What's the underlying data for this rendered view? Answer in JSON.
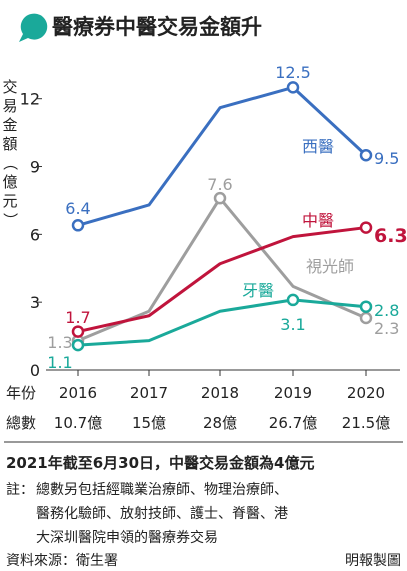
{
  "header": {
    "title": "醫療券中醫交易金額升"
  },
  "colors": {
    "accent": "#1aa99a",
    "西醫": "#3a6fc0",
    "中醫": "#c0143c",
    "視光師": "#9e9e9e",
    "牙醫": "#1aa99a",
    "text": "#222222"
  },
  "chart_data": {
    "type": "line",
    "ylabel": "交易金額（億元）",
    "ylim": [
      0,
      13.8
    ],
    "yticks": [
      0,
      3,
      6,
      9,
      12
    ],
    "x": [
      2016,
      2017,
      2018,
      2019,
      2020
    ],
    "grid": false,
    "series": [
      {
        "name": "西醫",
        "values": [
          6.4,
          7.3,
          11.6,
          12.5,
          9.5
        ],
        "labels": {
          "0": "6.4",
          "3": "12.5",
          "4": "9.5"
        }
      },
      {
        "name": "中醫",
        "values": [
          1.7,
          2.4,
          4.7,
          5.9,
          6.3
        ],
        "labels": {
          "0": "1.7",
          "4": "6.3"
        }
      },
      {
        "name": "視光師",
        "values": [
          1.3,
          2.6,
          7.6,
          3.7,
          2.3
        ],
        "labels": {
          "0": "1.3",
          "2": "7.6",
          "4": "2.3"
        }
      },
      {
        "name": "牙醫",
        "values": [
          1.1,
          1.3,
          2.6,
          3.1,
          2.8
        ],
        "labels": {
          "0": "1.1",
          "3": "3.1",
          "4": "2.8"
        }
      }
    ]
  },
  "table": {
    "year_label": "年份",
    "total_label": "總數",
    "years": [
      "2016",
      "2017",
      "2018",
      "2019",
      "2020"
    ],
    "totals": [
      "10.7億",
      "15億",
      "28億",
      "26.7億",
      "21.5億"
    ]
  },
  "notes": {
    "headline": "2021年截至6月30日，中醫交易金額為4億元",
    "note_label": "註：",
    "note_lines": [
      "總數另包括經職業治療師、物理治療師、",
      "醫務化驗師、放射技師、護士、脊醫、港",
      "大深圳醫院申領的醫療券交易"
    ]
  },
  "footer": {
    "source": "資料來源：衛生署",
    "credit": "明報製圖"
  }
}
